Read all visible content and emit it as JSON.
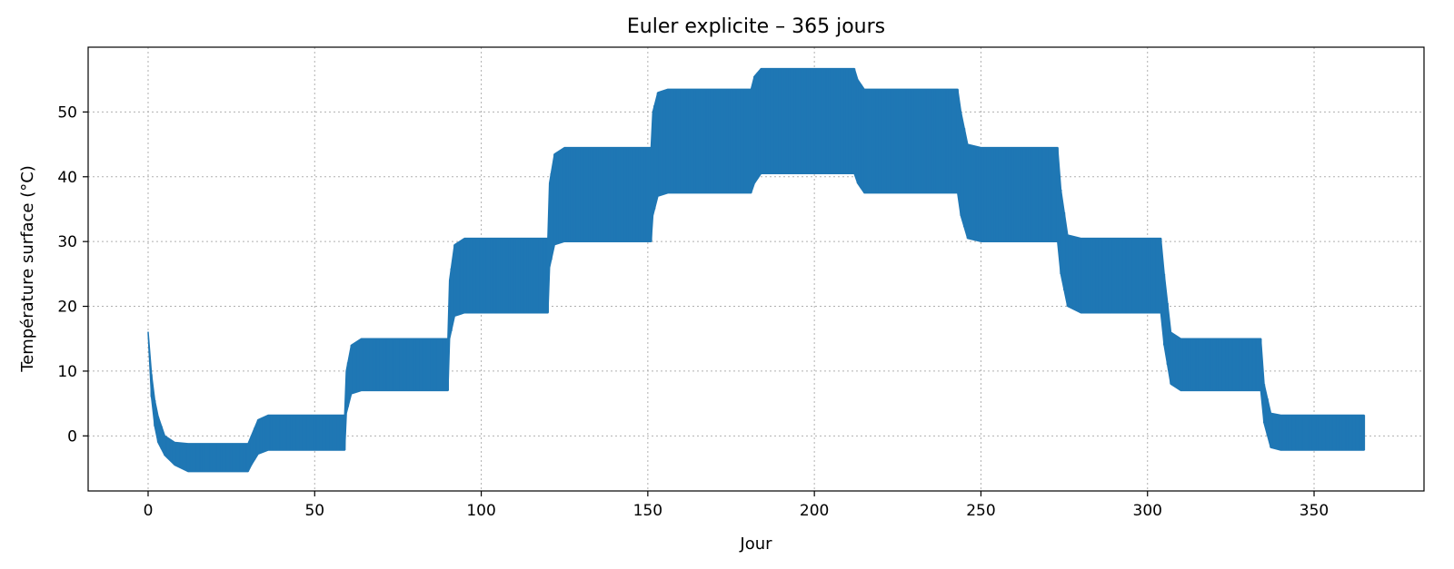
{
  "chart_data": {
    "type": "line",
    "title": "Euler explicite – 365 jours",
    "xlabel": "Jour",
    "ylabel": "Température surface (°C)",
    "xlim": [
      -18,
      383
    ],
    "ylim": [
      -8.5,
      60
    ],
    "grid": true,
    "x_ticks": [
      0,
      50,
      100,
      150,
      200,
      250,
      300,
      350
    ],
    "y_ticks": [
      0,
      10,
      20,
      30,
      40,
      50
    ],
    "color": "#1f77b4",
    "series": [
      {
        "x": [
          0,
          1,
          2,
          3,
          5,
          8,
          12,
          20,
          30,
          31,
          33,
          36,
          40,
          50,
          59,
          59.5,
          61,
          64,
          70,
          80,
          90,
          90.5,
          92,
          95,
          100,
          110,
          120,
          120.5,
          122,
          125,
          130,
          140,
          151,
          151.5,
          153,
          156,
          160,
          170,
          181,
          182,
          184,
          190,
          200,
          212,
          213,
          215,
          220,
          230,
          243,
          244,
          246,
          250,
          260,
          273,
          274,
          276,
          280,
          290,
          304,
          305,
          307,
          310,
          320,
          334,
          335,
          337,
          340,
          350,
          365
        ],
        "low": [
          16,
          6,
          1.5,
          -1,
          -3,
          -4.5,
          -5.5,
          -5.5,
          -5.5,
          -4.5,
          -2.8,
          -2.2,
          -2.2,
          -2.2,
          -2.2,
          3.5,
          6.5,
          7,
          7,
          7,
          7,
          15,
          18.5,
          19,
          19,
          19,
          19,
          26,
          29.5,
          30,
          30,
          30,
          30,
          34,
          37,
          37.5,
          37.5,
          37.5,
          37.5,
          39,
          40.5,
          40.5,
          40.5,
          40.5,
          39,
          37.5,
          37.5,
          37.5,
          37.5,
          34,
          30.5,
          30,
          30,
          30,
          25,
          20,
          19,
          19,
          19,
          14,
          8,
          7,
          7,
          7,
          2,
          -1.8,
          -2.2,
          -2.2,
          -2.2
        ],
        "high": [
          16,
          9.5,
          5.5,
          3,
          0,
          -1,
          -1.2,
          -1.2,
          -1.2,
          0,
          2.5,
          3.2,
          3.2,
          3.2,
          3.2,
          10,
          14,
          15,
          15,
          15,
          15,
          24,
          29.5,
          30.5,
          30.5,
          30.5,
          30.5,
          39,
          43.5,
          44.5,
          44.5,
          44.5,
          44.5,
          50,
          53,
          53.5,
          53.5,
          53.5,
          53.5,
          55.5,
          56.7,
          56.7,
          56.7,
          56.7,
          55,
          53.5,
          53.5,
          53.5,
          53.5,
          50,
          45,
          44.5,
          44.5,
          44.5,
          38,
          31,
          30.5,
          30.5,
          30.5,
          25,
          16,
          15,
          15,
          15,
          8,
          3.5,
          3.2,
          3.2,
          3.2
        ]
      }
    ]
  }
}
